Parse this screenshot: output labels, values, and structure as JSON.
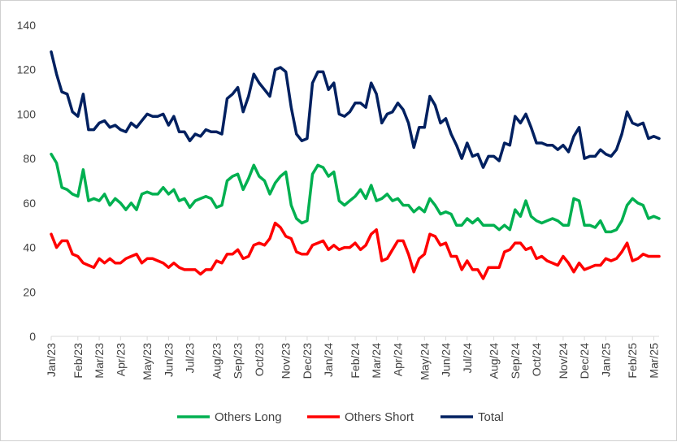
{
  "chart_data": {
    "type": "line",
    "title": "",
    "xlabel": "",
    "ylabel": "",
    "ylim": [
      0,
      140
    ],
    "yticks": [
      0,
      20,
      40,
      60,
      80,
      100,
      120,
      140
    ],
    "grid": false,
    "legend_position": "bottom",
    "x_tick_labels": [
      "Jan/23",
      "Feb/23",
      "Mar/23",
      "Apr/23",
      "May/23",
      "Jun/23",
      "Jul/23",
      "Aug/23",
      "Sep/23",
      "Oct/23",
      "Nov/23",
      "Dec/23",
      "Jan/24",
      "Feb/24",
      "Mar/24",
      "Apr/24",
      "May/24",
      "Jun/24",
      "Jul/24",
      "Aug/24",
      "Sep/24",
      "Oct/24",
      "Nov/24",
      "Dec/24",
      "Jan/25",
      "Feb/25",
      "Mar/25"
    ],
    "x_tick_week_index": [
      0,
      5,
      9,
      13,
      18,
      22,
      26,
      31,
      35,
      39,
      44,
      48,
      52,
      57,
      61,
      65,
      70,
      74,
      78,
      83,
      87,
      91,
      96,
      100,
      104,
      109,
      113
    ],
    "series": [
      {
        "name": "Others Long",
        "color": "#00b050",
        "values": [
          82,
          78,
          67,
          66,
          64,
          63,
          75,
          61,
          62,
          61,
          64,
          59,
          62,
          60,
          57,
          60,
          57,
          64,
          65,
          64,
          64,
          67,
          64,
          66,
          61,
          62,
          58,
          61,
          62,
          63,
          62,
          58,
          59,
          70,
          72,
          73,
          66,
          71,
          77,
          72,
          70,
          64,
          69,
          72,
          74,
          59,
          53,
          51,
          52,
          73,
          77,
          76,
          72,
          74,
          61,
          59,
          61,
          63,
          66,
          62,
          68,
          61,
          62,
          64,
          61,
          62,
          59,
          59,
          56,
          58,
          56,
          62,
          59,
          55,
          56,
          55,
          50,
          50,
          53,
          51,
          53,
          50,
          50,
          50,
          48,
          50,
          48,
          57,
          54,
          61,
          54,
          52,
          51,
          52,
          53,
          52,
          50,
          50,
          62,
          61,
          50,
          50,
          49,
          52,
          47,
          47,
          48,
          52,
          59,
          62,
          60,
          59,
          53,
          54,
          53
        ]
      },
      {
        "name": "Others Short",
        "color": "#ff0000",
        "values": [
          46,
          40,
          43,
          43,
          37,
          36,
          33,
          32,
          31,
          35,
          33,
          35,
          33,
          33,
          35,
          36,
          37,
          33,
          35,
          35,
          34,
          33,
          31,
          33,
          31,
          30,
          30,
          30,
          28,
          30,
          30,
          34,
          33,
          37,
          37,
          39,
          35,
          36,
          41,
          42,
          41,
          44,
          51,
          49,
          45,
          44,
          38,
          37,
          37,
          41,
          42,
          43,
          39,
          41,
          39,
          40,
          40,
          42,
          39,
          41,
          46,
          48,
          34,
          35,
          39,
          43,
          43,
          37,
          29,
          35,
          37,
          46,
          45,
          41,
          42,
          36,
          36,
          30,
          34,
          30,
          30,
          26,
          31,
          31,
          31,
          38,
          39,
          42,
          42,
          39,
          40,
          35,
          36,
          34,
          33,
          32,
          36,
          33,
          29,
          33,
          30,
          31,
          32,
          32,
          35,
          34,
          35,
          38,
          42,
          34,
          35,
          37,
          36,
          36,
          36
        ]
      },
      {
        "name": "Total",
        "color": "#002060",
        "values": [
          128,
          118,
          110,
          109,
          101,
          99,
          109,
          93,
          93,
          96,
          97,
          94,
          95,
          93,
          92,
          96,
          94,
          97,
          100,
          99,
          99,
          100,
          95,
          99,
          92,
          92,
          88,
          91,
          90,
          93,
          92,
          92,
          91,
          107,
          109,
          112,
          101,
          108,
          118,
          114,
          111,
          108,
          120,
          121,
          119,
          103,
          91,
          88,
          89,
          114,
          119,
          119,
          111,
          114,
          100,
          99,
          101,
          105,
          105,
          103,
          114,
          109,
          96,
          100,
          101,
          105,
          102,
          96,
          85,
          94,
          94,
          108,
          104,
          96,
          98,
          91,
          86,
          80,
          87,
          81,
          82,
          76,
          81,
          81,
          79,
          87,
          86,
          99,
          96,
          100,
          94,
          87,
          87,
          86,
          86,
          84,
          86,
          83,
          90,
          94,
          80,
          81,
          81,
          84,
          82,
          81,
          84,
          91,
          101,
          96,
          95,
          96,
          89,
          90,
          89
        ]
      }
    ]
  }
}
